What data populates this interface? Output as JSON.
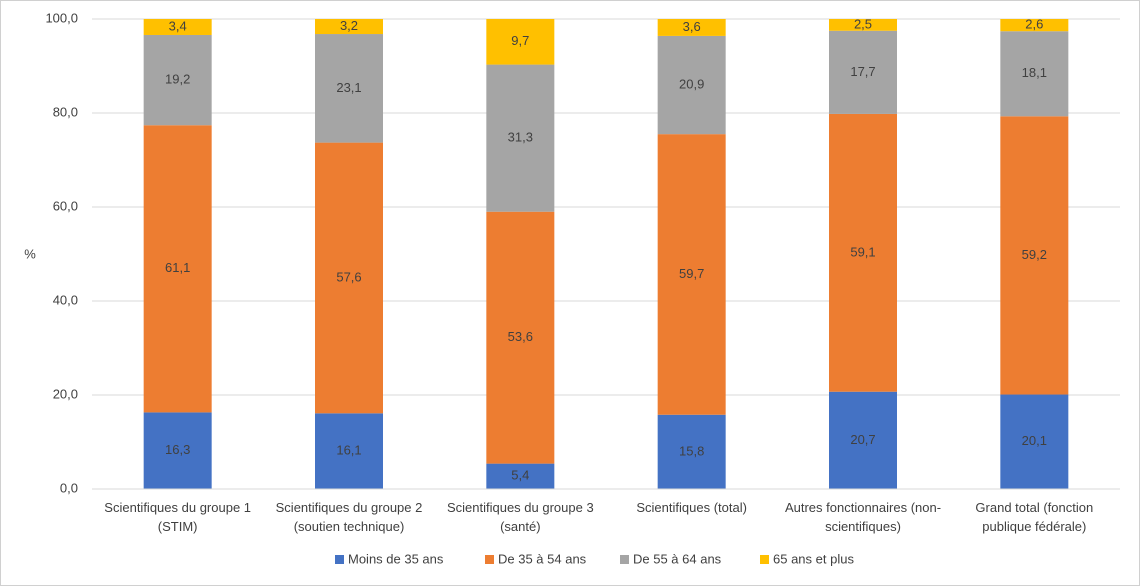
{
  "chart_data": {
    "type": "stacked_bar",
    "y_label": "%",
    "categories": [
      [
        "Scientifiques du groupe 1",
        "(STIM)"
      ],
      [
        "Scientifiques du groupe 2",
        "(soutien technique)"
      ],
      [
        "Scientifiques du groupe 3",
        "(santé)"
      ],
      [
        "Scientifiques (total)"
      ],
      [
        "Autres fonctionnaires (non-",
        "scientifiques)"
      ],
      [
        "Grand total (fonction",
        "publique fédérale)"
      ]
    ],
    "series": [
      {
        "name": "Moins de 35 ans",
        "color": "#4472c4",
        "values": [
          16.3,
          16.1,
          5.4,
          15.8,
          20.7,
          20.1
        ],
        "value_labels": [
          "16,3",
          "16,1",
          "5,4",
          "15,8",
          "20,7",
          "20,1"
        ]
      },
      {
        "name": "De 35 à 54 ans",
        "color": "#ed7d31",
        "values": [
          61.1,
          57.6,
          53.6,
          59.7,
          59.1,
          59.2
        ],
        "value_labels": [
          "61,1",
          "57,6",
          "53,6",
          "59,7",
          "59,1",
          "59,2"
        ]
      },
      {
        "name": "De 55 à 64 ans",
        "color": "#a5a5a5",
        "values": [
          19.2,
          23.1,
          31.3,
          20.9,
          17.7,
          18.1
        ],
        "value_labels": [
          "19,2",
          "23,1",
          "31,3",
          "20,9",
          "17,7",
          "18,1"
        ]
      },
      {
        "name": "65 ans et plus",
        "color": "#ffc000",
        "values": [
          3.4,
          3.2,
          9.7,
          3.6,
          2.5,
          2.6
        ],
        "value_labels": [
          "3,4",
          "3,2",
          "9,7",
          "3,6",
          "2,5",
          "2,6"
        ]
      }
    ],
    "ylim": [
      0,
      100
    ],
    "yticks": [
      {
        "value": 0,
        "label": "0,0"
      },
      {
        "value": 20,
        "label": "20,0"
      },
      {
        "value": 40,
        "label": "40,0"
      },
      {
        "value": 60,
        "label": "60,0"
      },
      {
        "value": 80,
        "label": "80,0"
      },
      {
        "value": 100,
        "label": "100,0"
      }
    ],
    "grid": true,
    "legend": "bottom"
  }
}
